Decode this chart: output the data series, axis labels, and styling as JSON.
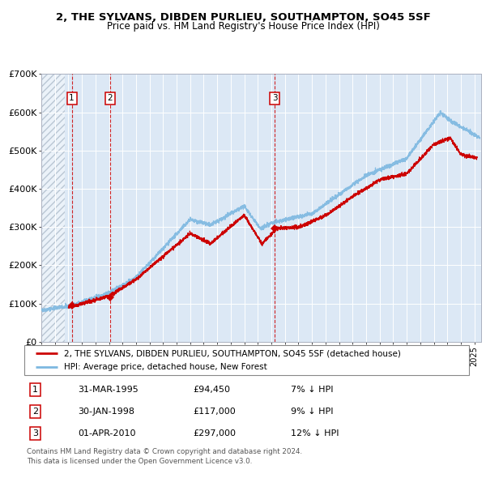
{
  "title": "2, THE SYLVANS, DIBDEN PURLIEU, SOUTHAMPTON, SO45 5SF",
  "subtitle": "Price paid vs. HM Land Registry's House Price Index (HPI)",
  "ylim": [
    0,
    700000
  ],
  "yticks": [
    0,
    100000,
    200000,
    300000,
    400000,
    500000,
    600000,
    700000
  ],
  "ytick_labels": [
    "£0",
    "£100K",
    "£200K",
    "£300K",
    "£400K",
    "£500K",
    "£600K",
    "£700K"
  ],
  "hpi_color": "#7db8e0",
  "price_color": "#cc0000",
  "marker_color": "#cc0000",
  "bg_color": "#dce8f5",
  "grid_color": "#ffffff",
  "vline_color": "#cc0000",
  "sales": [
    {
      "date_num": 1995.25,
      "price": 94450,
      "label": "1"
    },
    {
      "date_num": 1998.08,
      "price": 117000,
      "label": "2"
    },
    {
      "date_num": 2010.25,
      "price": 297000,
      "label": "3"
    }
  ],
  "legend_entries": [
    "2, THE SYLVANS, DIBDEN PURLIEU, SOUTHAMPTON, SO45 5SF (detached house)",
    "HPI: Average price, detached house, New Forest"
  ],
  "table_data": [
    {
      "num": "1",
      "date": "31-MAR-1995",
      "price": "£94,450",
      "hpi": "7% ↓ HPI"
    },
    {
      "num": "2",
      "date": "30-JAN-1998",
      "price": "£117,000",
      "hpi": "9% ↓ HPI"
    },
    {
      "num": "3",
      "date": "01-APR-2010",
      "price": "£297,000",
      "hpi": "12% ↓ HPI"
    }
  ],
  "footer": "Contains HM Land Registry data © Crown copyright and database right 2024.\nThis data is licensed under the Open Government Licence v3.0.",
  "xmin": 1993.0,
  "xmax": 2025.5,
  "hatch_end": 1994.75
}
